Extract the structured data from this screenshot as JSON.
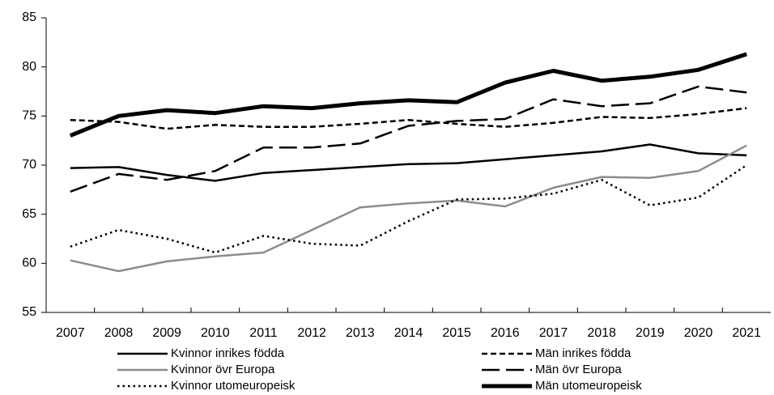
{
  "chart_data": {
    "type": "line",
    "categories": [
      "2007",
      "2008",
      "2009",
      "2010",
      "2011",
      "2012",
      "2013",
      "2014",
      "2015",
      "2016",
      "2017",
      "2018",
      "2019",
      "2020",
      "2021"
    ],
    "ylim": [
      55,
      85
    ],
    "yticks": [
      55,
      60,
      65,
      70,
      75,
      80,
      85
    ],
    "grid": false,
    "legend": "bottom",
    "series": [
      {
        "name": "Kvinnor inrikes födda",
        "color": "#000000",
        "linestyle": "solid",
        "linewidth": 2.5,
        "values": [
          69.7,
          69.8,
          69.0,
          68.4,
          69.2,
          69.5,
          69.8,
          70.1,
          70.2,
          70.6,
          71.0,
          71.4,
          72.1,
          71.2,
          71.0
        ]
      },
      {
        "name": "Män inrikes födda",
        "color": "#000000",
        "linestyle": "dashed",
        "linewidth": 2.5,
        "values": [
          74.6,
          74.4,
          73.7,
          74.1,
          73.9,
          73.9,
          74.2,
          74.6,
          74.2,
          73.9,
          74.3,
          74.9,
          74.8,
          75.2,
          75.8
        ]
      },
      {
        "name": "Kvinnor övr Europa",
        "color": "#8c8c8c",
        "linestyle": "solid",
        "linewidth": 2.5,
        "values": [
          60.3,
          59.2,
          60.2,
          60.7,
          61.1,
          63.4,
          65.7,
          66.1,
          66.4,
          65.8,
          67.7,
          68.8,
          68.7,
          69.4,
          72.0
        ]
      },
      {
        "name": "Män övr Europa",
        "color": "#000000",
        "linestyle": "longdash",
        "linewidth": 2.5,
        "values": [
          67.3,
          69.1,
          68.5,
          69.4,
          71.8,
          71.8,
          72.2,
          74.0,
          74.5,
          74.7,
          76.7,
          76.0,
          76.3,
          78.0,
          77.4
        ]
      },
      {
        "name": "Kvinnor utomeuropeisk",
        "color": "#000000",
        "linestyle": "dotted",
        "linewidth": 2.5,
        "values": [
          61.7,
          63.4,
          62.5,
          61.1,
          62.8,
          62.0,
          61.8,
          64.3,
          66.5,
          66.6,
          67.1,
          68.5,
          65.9,
          66.7,
          70.0
        ]
      },
      {
        "name": "Män utomeuropeisk",
        "color": "#000000",
        "linestyle": "solid",
        "linewidth": 5,
        "values": [
          73.0,
          75.0,
          75.6,
          75.3,
          76.0,
          75.8,
          76.3,
          76.6,
          76.4,
          78.4,
          79.6,
          78.6,
          79.0,
          79.7,
          81.3
        ]
      }
    ]
  }
}
